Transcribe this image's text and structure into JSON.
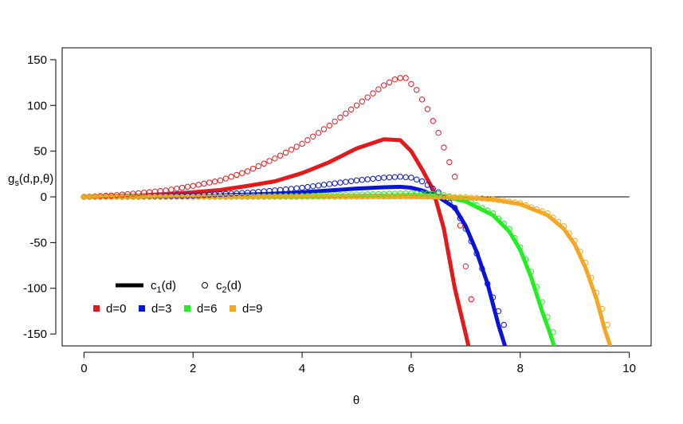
{
  "chart_data": {
    "type": "line",
    "xlabel": "θ",
    "ylabel": "g_s(d,p,θ)",
    "ylabel_main": "g",
    "ylabel_sub": "s",
    "ylabel_rest": "(d,p,θ)",
    "xlim": [
      -0.4,
      10.4
    ],
    "ylim": [
      -163,
      163
    ],
    "x_ticks": [
      0,
      2,
      4,
      6,
      8,
      10
    ],
    "y_ticks": [
      -150,
      -100,
      -50,
      0,
      50,
      100,
      150
    ],
    "x_tick_labels": [
      "0",
      "2",
      "4",
      "6",
      "8",
      "10"
    ],
    "y_tick_labels": [
      "-150",
      "-100",
      "-50",
      "0",
      "50",
      "100",
      "150"
    ],
    "reference_line": {
      "y": 0,
      "x_from": 0,
      "x_to": 10
    },
    "legend_style": {
      "line_label": "c",
      "line_sub": "1",
      "line_rest": "(d)",
      "point_label": "c",
      "point_sub": "2",
      "point_rest": "(d)"
    },
    "series": [
      {
        "name": "d=0",
        "color": "#e31a1c",
        "c1": {
          "x": [
            0,
            0.5,
            1,
            1.5,
            2,
            2.5,
            3,
            3.5,
            4,
            4.5,
            5,
            5.5,
            5.8,
            6,
            6.2,
            6.4,
            6.6,
            6.8,
            7,
            7.05
          ],
          "y": [
            0,
            0.6,
            1.4,
            3,
            5,
            7.5,
            12,
            17,
            26,
            38,
            53,
            63,
            62,
            50,
            30,
            8,
            -35,
            -100,
            -150,
            -163
          ]
        },
        "c2": {
          "x": [
            0,
            0.5,
            1,
            1.5,
            2,
            2.5,
            3,
            3.5,
            4,
            4.5,
            5,
            5.5,
            5.75,
            5.9,
            6.1,
            6.3,
            6.5,
            6.7,
            6.8,
            6.95,
            7.1
          ],
          "y": [
            0,
            1.5,
            4,
            7,
            12,
            18,
            28,
            42,
            58,
            78,
            100,
            122,
            130,
            130,
            117,
            96,
            70,
            38,
            22,
            -58,
            -112
          ]
        }
      },
      {
        "name": "d=3",
        "color": "#0a14d8",
        "c1": {
          "x": [
            0,
            1,
            2,
            3,
            3.5,
            4,
            4.5,
            5,
            5.5,
            5.8,
            6,
            6.2,
            6.5,
            6.8,
            7,
            7.2,
            7.4,
            7.6,
            7.72
          ],
          "y": [
            0,
            0.1,
            0.8,
            2.5,
            3.5,
            5,
            7,
            9,
            10.5,
            11,
            10,
            7,
            0,
            -12,
            -32,
            -60,
            -95,
            -140,
            -163
          ]
        },
        "c2": {
          "x": [
            0,
            1,
            2,
            3,
            3.5,
            4,
            4.5,
            5,
            5.5,
            5.8,
            6,
            6.2,
            6.5,
            6.8,
            7,
            7.2,
            7.4,
            7.6,
            7.7
          ],
          "y": [
            0,
            0.3,
            1.5,
            4.5,
            7,
            10,
            14,
            18,
            21,
            22,
            21,
            17,
            5,
            -12,
            -35,
            -62,
            -95,
            -125,
            -140
          ]
        }
      },
      {
        "name": "d=6",
        "color": "#22ee22",
        "c1": {
          "x": [
            0,
            2,
            4,
            5,
            6,
            6.5,
            7,
            7.5,
            7.8,
            8,
            8.2,
            8.4,
            8.55,
            8.62
          ],
          "y": [
            0,
            0,
            0.3,
            1,
            2,
            1.5,
            -5,
            -20,
            -38,
            -58,
            -88,
            -125,
            -150,
            -163
          ]
        },
        "c2": {
          "x": [
            0,
            2,
            4,
            5,
            6,
            6.5,
            7,
            7.5,
            7.8,
            8,
            8.2,
            8.4,
            8.6,
            8.65
          ],
          "y": [
            0,
            0.1,
            1,
            2.5,
            4,
            3,
            -3,
            -18,
            -35,
            -55,
            -82,
            -115,
            -148,
            -158
          ]
        }
      },
      {
        "name": "d=9",
        "color": "#f5a623",
        "c1": {
          "x": [
            0,
            2,
            4,
            6,
            7,
            7.5,
            8,
            8.5,
            8.8,
            9,
            9.2,
            9.4,
            9.55,
            9.65
          ],
          "y": [
            0,
            0,
            0,
            0,
            -1,
            -3,
            -8,
            -20,
            -35,
            -52,
            -78,
            -112,
            -145,
            -163
          ]
        },
        "c2": {
          "x": [
            0,
            2,
            4,
            6,
            7,
            7.5,
            8,
            8.5,
            8.8,
            9,
            9.2,
            9.4,
            9.6
          ],
          "y": [
            0,
            0,
            0.1,
            0.5,
            -0.5,
            -2.5,
            -7,
            -18,
            -32,
            -48,
            -72,
            -105,
            -140
          ]
        }
      }
    ]
  }
}
